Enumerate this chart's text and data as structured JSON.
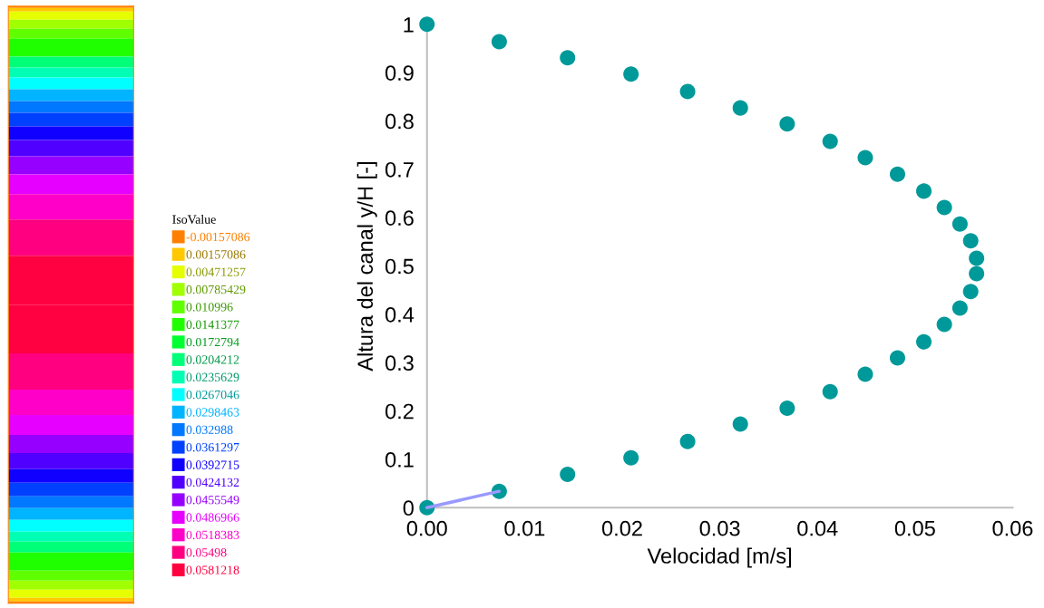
{
  "chart_data": [
    {
      "type": "other",
      "legend_title": "IsoValue",
      "categories": [
        "-0.00157086",
        "0.00157086",
        "0.00471257",
        "0.00785429",
        "0.010996",
        "0.0141377",
        "0.0172794",
        "0.0204212",
        "0.0235629",
        "0.0267046",
        "0.0298463",
        "0.032988",
        "0.0361297",
        "0.0392715",
        "0.0424132",
        "0.0455549",
        "0.0486966",
        "0.0518383",
        "0.05498",
        "0.0581218"
      ],
      "colors": [
        "#ff8000",
        "#ffc800",
        "#e6ff00",
        "#a0ff00",
        "#60ff00",
        "#20ff00",
        "#00ff30",
        "#00ff78",
        "#00ffb4",
        "#00ffff",
        "#00b4ff",
        "#0078ff",
        "#0040ff",
        "#1000ff",
        "#5000ff",
        "#9600ff",
        "#e600ff",
        "#ff00c8",
        "#ff0080",
        "#ff0040"
      ]
    },
    {
      "type": "scatter",
      "xlabel": "Velocidad [m/s]",
      "ylabel": "Altura del canal y/H [-]",
      "xlim": [
        0,
        0.06
      ],
      "xticks": [
        {
          "value": 0,
          "label": "0.00"
        },
        {
          "value": 0.01,
          "label": "0.01"
        },
        {
          "value": 0.02,
          "label": "0.02"
        },
        {
          "value": 0.03,
          "label": "0.03"
        },
        {
          "value": 0.04,
          "label": "0.04"
        },
        {
          "value": 0.05,
          "label": "0.05"
        },
        {
          "value": 0.06,
          "label": "0.06"
        }
      ],
      "ylim": [
        0,
        1
      ],
      "yticks": [
        0,
        0.1,
        0.2,
        0.3,
        0.4,
        0.5,
        0.6,
        0.7,
        0.8,
        0.9,
        1
      ],
      "series": [
        {
          "type": "line",
          "color": "#9999ff",
          "x": [
            0,
            0.0074
          ],
          "values": [
            0,
            0.034
          ]
        },
        {
          "type": "scatter",
          "color": "#009999",
          "marker": "circle",
          "x": [
            0,
            0.0074,
            0.0144,
            0.0209,
            0.0267,
            0.0321,
            0.0369,
            0.0413,
            0.0449,
            0.0482,
            0.0509,
            0.053,
            0.0546,
            0.0557,
            0.0563,
            0.0563,
            0.0557,
            0.0546,
            0.053,
            0.0509,
            0.0482,
            0.0449,
            0.0413,
            0.0369,
            0.0321,
            0.0267,
            0.0209,
            0.0144,
            0.0074,
            0
          ],
          "values": [
            0,
            0.034,
            0.069,
            0.103,
            0.137,
            0.173,
            0.206,
            0.24,
            0.276,
            0.31,
            0.343,
            0.379,
            0.413,
            0.447,
            0.484,
            0.516,
            0.552,
            0.587,
            0.621,
            0.655,
            0.69,
            0.724,
            0.758,
            0.794,
            0.827,
            0.861,
            0.897,
            0.931,
            0.964,
            1
          ]
        }
      ]
    }
  ]
}
